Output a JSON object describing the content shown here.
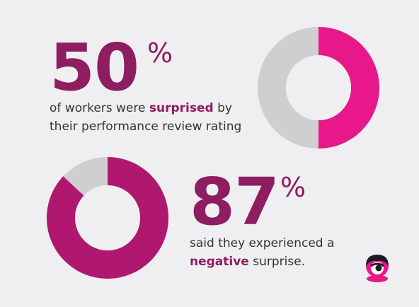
{
  "colors": {
    "background": "#efeff1",
    "accent": "#8e1d61",
    "donut_pink": "#e8178a",
    "donut_magenta": "#b0176e",
    "donut_grey": "#cfcfd1",
    "text": "#333333"
  },
  "stat1": {
    "number": "50",
    "percent_sign": "%",
    "caption_line1_before": "of workers were ",
    "caption_line1_highlight": "surprised",
    "caption_line1_after": " by",
    "caption_line2": "their performance review rating"
  },
  "stat2": {
    "number": "87",
    "percent_sign": "%",
    "caption_line1": "said they experienced a",
    "caption_line2_highlight": "negative",
    "caption_line2_after": " surprise."
  },
  "logo": {
    "icon": "face-logo-icon"
  },
  "chart_data": [
    {
      "type": "pie",
      "variant": "donut",
      "values": [
        50,
        50
      ],
      "colors": [
        "#e8178a",
        "#cfcfd1"
      ]
    },
    {
      "type": "pie",
      "variant": "donut",
      "values": [
        87,
        13
      ],
      "colors": [
        "#b0176e",
        "#cfcfd1"
      ]
    }
  ]
}
